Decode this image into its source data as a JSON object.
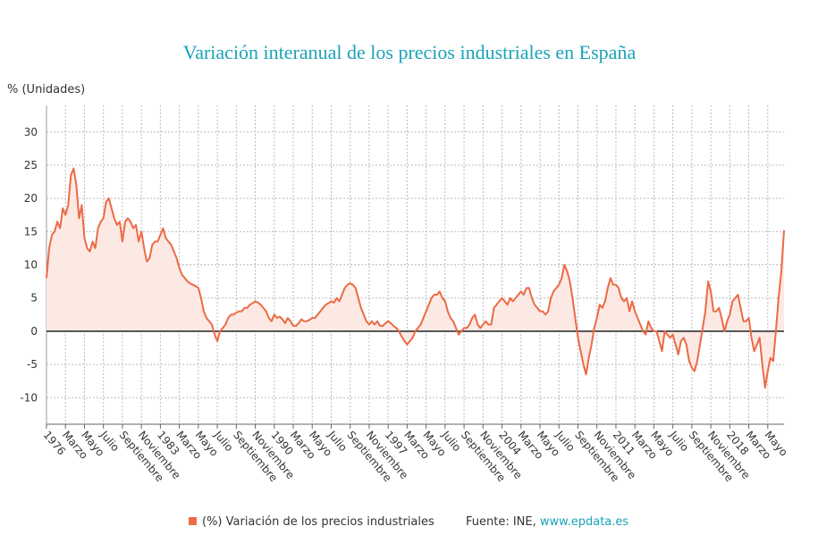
{
  "chart_data": {
    "type": "line",
    "title": "Variación interanual de los precios industriales en España",
    "y_axis_label": "% (Unidades)",
    "source": "Fuente: INE,",
    "source_link": "www.epdata.es",
    "ylim": [
      -14,
      34
    ],
    "yticks": [
      -10,
      -5,
      0,
      5,
      10,
      15,
      20,
      25,
      30
    ],
    "grid": true,
    "legend": "bottom",
    "categories": [
      "1976",
      null,
      null,
      null,
      null,
      null,
      null,
      "Marzo",
      null,
      null,
      null,
      null,
      null,
      null,
      "Mayo",
      null,
      null,
      null,
      null,
      null,
      null,
      "Julio",
      null,
      null,
      null,
      null,
      null,
      null,
      "Septiembre",
      null,
      null,
      null,
      null,
      null,
      null,
      "Noviembre",
      null,
      null,
      null,
      null,
      null,
      null,
      "1983",
      null,
      null,
      null,
      null,
      null,
      null,
      "Marzo",
      null,
      null,
      null,
      null,
      null,
      null,
      "Mayo",
      null,
      null,
      null,
      null,
      null,
      null,
      "Julio",
      null,
      null,
      null,
      null,
      null,
      null,
      "Septiembre",
      null,
      null,
      null,
      null,
      null,
      null,
      "Noviembre",
      null,
      null,
      null,
      null,
      null,
      null,
      "1990",
      null,
      null,
      null,
      null,
      null,
      null,
      "Marzo",
      null,
      null,
      null,
      null,
      null,
      null,
      "Mayo",
      null,
      null,
      null,
      null,
      null,
      null,
      "Julio",
      null,
      null,
      null,
      null,
      null,
      null,
      "Septiembre",
      null,
      null,
      null,
      null,
      null,
      null,
      "Noviembre",
      null,
      null,
      null,
      null,
      null,
      null,
      "1997",
      null,
      null,
      null,
      null,
      null,
      null,
      "Marzo",
      null,
      null,
      null,
      null,
      null,
      null,
      "Mayo",
      null,
      null,
      null,
      null,
      null,
      null,
      "Julio",
      null,
      null,
      null,
      null,
      null,
      null,
      "Septiembre",
      null,
      null,
      null,
      null,
      null,
      null,
      "Noviembre",
      null,
      null,
      null,
      null,
      null,
      null,
      "2004",
      null,
      null,
      null,
      null,
      null,
      null,
      "Marzo",
      null,
      null,
      null,
      null,
      null,
      null,
      "Mayo",
      null,
      null,
      null,
      null,
      null,
      null,
      "Julio",
      null,
      null,
      null,
      null,
      null,
      null,
      "Septiembre",
      null,
      null,
      null,
      null,
      null,
      null,
      "Noviembre",
      null,
      null,
      null,
      null,
      null,
      null,
      "2011",
      null,
      null,
      null,
      null,
      null,
      null,
      "Marzo",
      null,
      null,
      null,
      null,
      null,
      null,
      "Mayo",
      null,
      null,
      null,
      null,
      null,
      null,
      "Julio",
      null,
      null,
      null,
      null,
      null,
      null,
      "Septiembre",
      null,
      null,
      null,
      null,
      null,
      null,
      "Noviembre",
      null,
      null,
      null,
      null,
      null,
      null,
      "2018",
      null,
      null,
      null,
      null,
      null,
      null,
      "Marzo",
      null,
      null,
      null,
      null,
      null,
      null,
      "Mayo",
      null,
      null,
      null,
      null,
      null,
      null
    ],
    "series": [
      {
        "name": "(%) Variación de los precios industriales",
        "color": "#ec6a45",
        "fill": "#fde9e4",
        "values": [
          8,
          12.5,
          14.5,
          15,
          16.5,
          15.5,
          18.5,
          17.5,
          19,
          23.5,
          24.5,
          22,
          17,
          19,
          14,
          12.5,
          12,
          13.5,
          12.5,
          15.5,
          16.5,
          17,
          19.5,
          20,
          18.5,
          17,
          16,
          16.5,
          13.5,
          16.5,
          17,
          16.5,
          15.5,
          16,
          13.5,
          15,
          12.5,
          10.5,
          11,
          13,
          13.5,
          13.5,
          14.5,
          15.5,
          14,
          13.5,
          13,
          12,
          11,
          9.5,
          8.5,
          8,
          7.5,
          7.2,
          7,
          6.8,
          6.5,
          5,
          3,
          2,
          1.5,
          1,
          -0.5,
          -1.5,
          0,
          0.5,
          1,
          2,
          2.5,
          2.5,
          2.8,
          3,
          3,
          3.5,
          3.5,
          4,
          4.2,
          4.5,
          4.3,
          4,
          3.5,
          3,
          2,
          1.5,
          2.5,
          2,
          2.2,
          1.8,
          1.2,
          2,
          1.5,
          0.8,
          0.8,
          1.2,
          1.8,
          1.5,
          1.5,
          1.7,
          2,
          2,
          2.5,
          3,
          3.5,
          4,
          4.2,
          4.5,
          4.3,
          5,
          4.5,
          5.5,
          6.5,
          7,
          7.2,
          7,
          6.5,
          5,
          3.5,
          2.5,
          1.5,
          1,
          1.5,
          1,
          1.5,
          0.8,
          0.8,
          1.2,
          1.5,
          1.2,
          0.8,
          0.5,
          0,
          -0.8,
          -1.5,
          -2,
          -1.5,
          -1,
          0,
          0.5,
          1,
          2,
          3,
          4,
          5,
          5.5,
          5.5,
          6,
          5,
          4.5,
          3,
          2,
          1.5,
          0.5,
          -0.5,
          0,
          0.5,
          0.5,
          1,
          2,
          2.5,
          1,
          0.5,
          1,
          1.5,
          1,
          1,
          3.5,
          4,
          4.5,
          5,
          4.5,
          4,
          5,
          4.5,
          5,
          5.5,
          6,
          5.5,
          6.5,
          6.5,
          5,
          4,
          3.5,
          3,
          3,
          2.5,
          3,
          5,
          6,
          6.5,
          7,
          8,
          10,
          9,
          7.5,
          5,
          2,
          -1,
          -3,
          -5,
          -6.5,
          -4,
          -2,
          0.5,
          2,
          4,
          3.5,
          4.5,
          6.5,
          8,
          7,
          7,
          6.5,
          5,
          4.5,
          5,
          3,
          4.5,
          3,
          2,
          1,
          0,
          -0.5,
          1.5,
          0.5,
          0,
          0,
          -1.5,
          -3,
          0,
          -0.5,
          -1,
          -0.5,
          -2,
          -3.5,
          -1.5,
          -1,
          -2,
          -4.5,
          -5.5,
          -6,
          -4.5,
          -2,
          0.5,
          3,
          7.5,
          6,
          3,
          3,
          3.5,
          2,
          0,
          1.5,
          2.5,
          4.5,
          5,
          5.5,
          3.5,
          1.5,
          1.5,
          2,
          -1,
          -3,
          -2,
          -1,
          -5,
          -8.5,
          -6,
          -4,
          -4.5,
          0,
          5,
          9,
          15.2
        ]
      }
    ]
  }
}
